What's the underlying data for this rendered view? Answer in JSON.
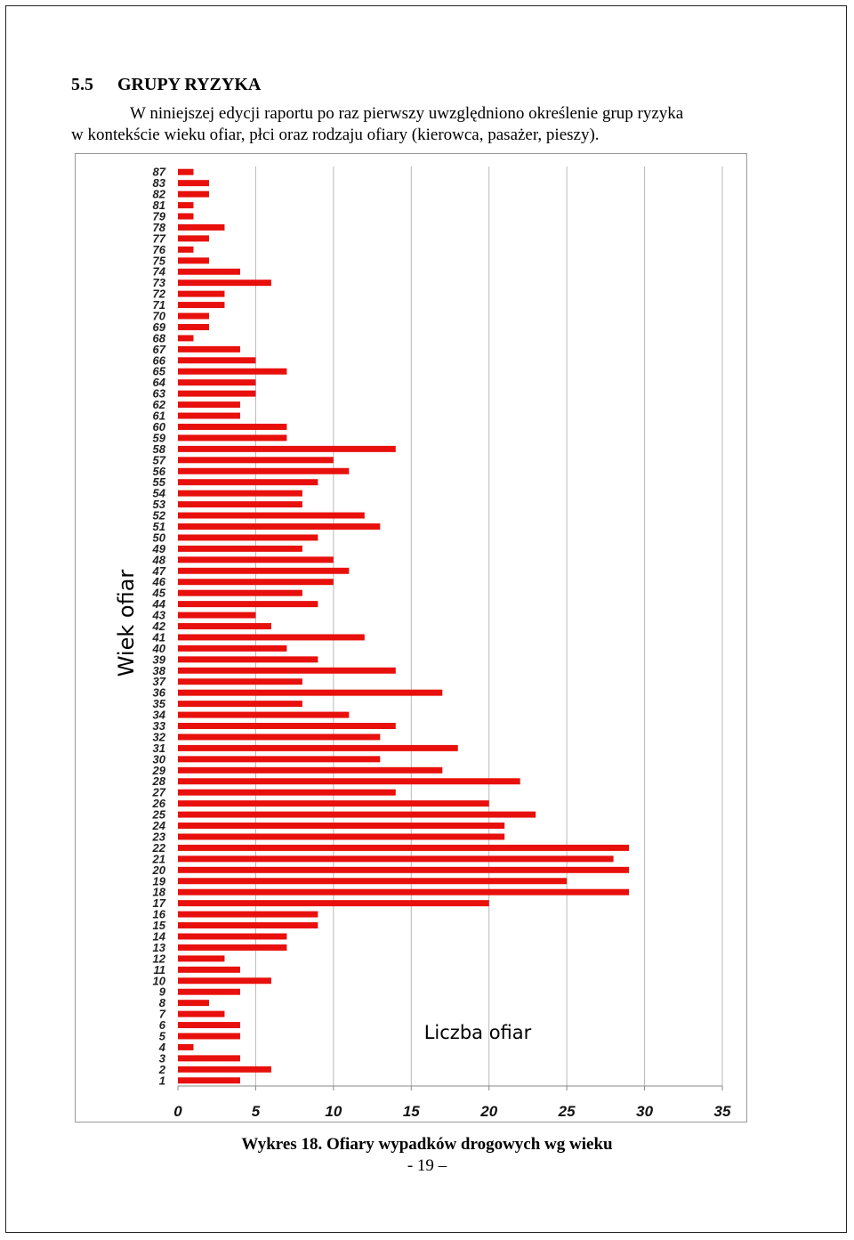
{
  "section": {
    "number": "5.5",
    "title": "GRUPY RYZYKA",
    "paragraph_line1": "W niniejszej edycji raportu po raz pierwszy uwzględniono określenie grup ryzyka",
    "paragraph_line2": "w kontekście wieku ofiar, płci oraz rodzaju ofiary (kierowca, pasażer, pieszy)."
  },
  "chart_data": {
    "type": "bar",
    "orientation": "horizontal",
    "ylabel": "Wiek ofiar",
    "xlabel": "Liczba ofiar",
    "xlim": [
      0,
      35
    ],
    "xticks": [
      0,
      5,
      10,
      15,
      20,
      25,
      30,
      35
    ],
    "grid": "vertical",
    "bar_color": "#e8100c",
    "categories": [
      "1",
      "2",
      "3",
      "4",
      "5",
      "6",
      "7",
      "8",
      "9",
      "10",
      "11",
      "12",
      "13",
      "14",
      "15",
      "16",
      "17",
      "18",
      "19",
      "20",
      "21",
      "22",
      "23",
      "24",
      "25",
      "26",
      "27",
      "28",
      "29",
      "30",
      "31",
      "32",
      "33",
      "34",
      "35",
      "36",
      "37",
      "38",
      "39",
      "40",
      "41",
      "42",
      "43",
      "44",
      "45",
      "46",
      "47",
      "48",
      "49",
      "50",
      "51",
      "52",
      "53",
      "54",
      "55",
      "56",
      "57",
      "58",
      "59",
      "60",
      "61",
      "62",
      "63",
      "64",
      "65",
      "66",
      "67",
      "68",
      "69",
      "70",
      "71",
      "72",
      "73",
      "74",
      "75",
      "76",
      "77",
      "78",
      "79",
      "81",
      "82",
      "83",
      "87"
    ],
    "values": [
      4,
      6,
      4,
      1,
      4,
      4,
      3,
      2,
      4,
      6,
      4,
      3,
      7,
      7,
      9,
      9,
      20,
      29,
      25,
      29,
      28,
      29,
      21,
      21,
      23,
      20,
      14,
      22,
      17,
      13,
      18,
      13,
      14,
      11,
      8,
      17,
      8,
      14,
      9,
      7,
      12,
      6,
      5,
      9,
      8,
      10,
      11,
      10,
      8,
      9,
      13,
      12,
      8,
      8,
      9,
      11,
      10,
      14,
      7,
      7,
      4,
      4,
      5,
      5,
      7,
      5,
      4,
      1,
      2,
      2,
      3,
      3,
      6,
      4,
      2,
      1,
      2,
      3,
      1,
      1,
      2,
      2,
      1
    ]
  },
  "caption": "Wykres 18. Ofiary wypadków drogowych wg wieku",
  "page_number": "- 19 –"
}
